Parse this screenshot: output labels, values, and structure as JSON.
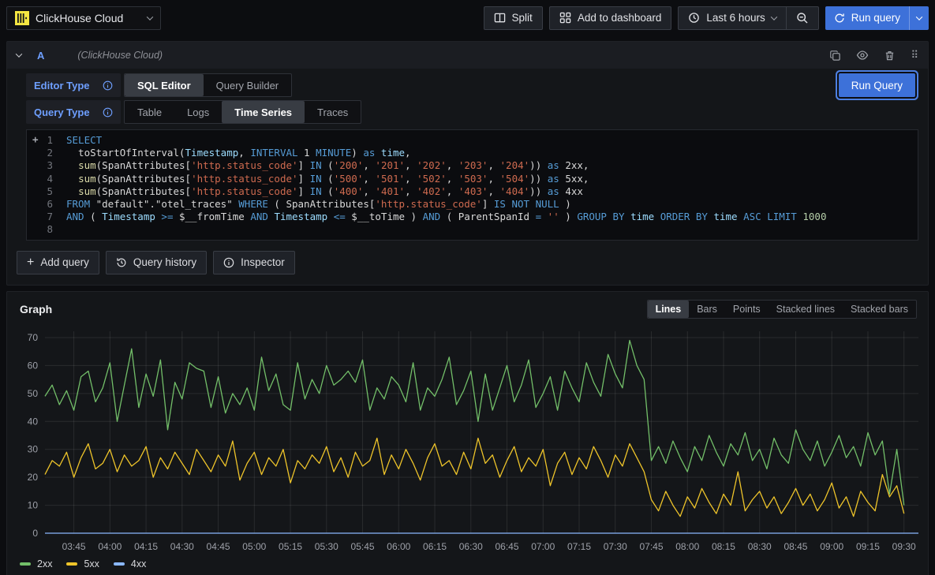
{
  "topbar": {
    "datasource_picker": {
      "name": "ClickHouse Cloud"
    },
    "split_label": "Split",
    "add_to_dashboard_label": "Add to dashboard",
    "time_range_label": "Last 6 hours",
    "run_query_label": "Run query"
  },
  "icons": {
    "datasource_logo": "clickhouse-bars",
    "split": "split-panes",
    "add_to_dashboard": "apps-grid",
    "time_range": "clock",
    "zoom_out": "magnifier-minus",
    "run_query": "refresh-arrows",
    "collapse": "chevron-down",
    "duplicate": "copy",
    "visibility": "eye",
    "delete": "trash",
    "drag": "dots-grid",
    "add": "plus",
    "history": "history-arrow",
    "inspector": "info-circle",
    "field_info": "info-circle"
  },
  "query_editor": {
    "ref_id": "A",
    "datasource_hint": "(ClickHouse Cloud)",
    "editor_type": {
      "label": "Editor Type",
      "options": [
        {
          "label": "SQL Editor",
          "active": true
        },
        {
          "label": "Query Builder",
          "active": false
        }
      ]
    },
    "query_type": {
      "label": "Query Type",
      "options": [
        {
          "label": "Table",
          "active": false
        },
        {
          "label": "Logs",
          "active": false
        },
        {
          "label": "Time Series",
          "active": true
        },
        {
          "label": "Traces",
          "active": false
        }
      ]
    },
    "run_query_label": "Run Query",
    "footer": {
      "add_query": "Add query",
      "query_history": "Query history",
      "inspector": "Inspector"
    }
  },
  "sql_editor": {
    "gutter_plus": "+",
    "syntax_colors": {
      "kw": "#569CD6",
      "fn": "#DCDCAA",
      "ty": "#9CDCFE",
      "str": "#CE6A4F",
      "num": "#B5CEA8",
      "pl": "#D8D8D8"
    },
    "lines": [
      [
        [
          "kw",
          "SELECT"
        ]
      ],
      [
        [
          "pl",
          "  toStartOfInterval("
        ],
        [
          "ty",
          "Timestamp"
        ],
        [
          "pl",
          ", "
        ],
        [
          "kw",
          "INTERVAL"
        ],
        [
          "pl",
          " 1 "
        ],
        [
          "kw",
          "MINUTE"
        ],
        [
          "pl",
          ") "
        ],
        [
          "kw",
          "as"
        ],
        [
          "pl",
          " "
        ],
        [
          "ty",
          "time"
        ],
        [
          "pl",
          ","
        ]
      ],
      [
        [
          "pl",
          "  "
        ],
        [
          "fn",
          "sum"
        ],
        [
          "pl",
          "(SpanAttributes["
        ],
        [
          "str",
          "'http.status_code'"
        ],
        [
          "pl",
          "] "
        ],
        [
          "kw",
          "IN"
        ],
        [
          "pl",
          " ("
        ],
        [
          "str",
          "'200'"
        ],
        [
          "pl",
          ", "
        ],
        [
          "str",
          "'201'"
        ],
        [
          "pl",
          ", "
        ],
        [
          "str",
          "'202'"
        ],
        [
          "pl",
          ", "
        ],
        [
          "str",
          "'203'"
        ],
        [
          "pl",
          ", "
        ],
        [
          "str",
          "'204'"
        ],
        [
          "pl",
          ")) "
        ],
        [
          "kw",
          "as"
        ],
        [
          "pl",
          " 2xx,"
        ]
      ],
      [
        [
          "pl",
          "  "
        ],
        [
          "fn",
          "sum"
        ],
        [
          "pl",
          "(SpanAttributes["
        ],
        [
          "str",
          "'http.status_code'"
        ],
        [
          "pl",
          "] "
        ],
        [
          "kw",
          "IN"
        ],
        [
          "pl",
          " ("
        ],
        [
          "str",
          "'500'"
        ],
        [
          "pl",
          ", "
        ],
        [
          "str",
          "'501'"
        ],
        [
          "pl",
          ", "
        ],
        [
          "str",
          "'502'"
        ],
        [
          "pl",
          ", "
        ],
        [
          "str",
          "'503'"
        ],
        [
          "pl",
          ", "
        ],
        [
          "str",
          "'504'"
        ],
        [
          "pl",
          ")) "
        ],
        [
          "kw",
          "as"
        ],
        [
          "pl",
          " 5xx,"
        ]
      ],
      [
        [
          "pl",
          "  "
        ],
        [
          "fn",
          "sum"
        ],
        [
          "pl",
          "(SpanAttributes["
        ],
        [
          "str",
          "'http.status_code'"
        ],
        [
          "pl",
          "] "
        ],
        [
          "kw",
          "IN"
        ],
        [
          "pl",
          " ("
        ],
        [
          "str",
          "'400'"
        ],
        [
          "pl",
          ", "
        ],
        [
          "str",
          "'401'"
        ],
        [
          "pl",
          ", "
        ],
        [
          "str",
          "'402'"
        ],
        [
          "pl",
          ", "
        ],
        [
          "str",
          "'403'"
        ],
        [
          "pl",
          ", "
        ],
        [
          "str",
          "'404'"
        ],
        [
          "pl",
          ")) "
        ],
        [
          "kw",
          "as"
        ],
        [
          "pl",
          " 4xx"
        ]
      ],
      [
        [
          "kw",
          "FROM"
        ],
        [
          "pl",
          " \"default\".\"otel_traces\" "
        ],
        [
          "kw",
          "WHERE"
        ],
        [
          "pl",
          " ( SpanAttributes["
        ],
        [
          "str",
          "'http.status_code'"
        ],
        [
          "pl",
          "] "
        ],
        [
          "kw",
          "IS NOT NULL"
        ],
        [
          "pl",
          " )"
        ]
      ],
      [
        [
          "kw",
          "AND"
        ],
        [
          "pl",
          " ( "
        ],
        [
          "ty",
          "Timestamp"
        ],
        [
          "pl",
          " "
        ],
        [
          "kw",
          ">="
        ],
        [
          "pl",
          " $__fromTime "
        ],
        [
          "kw",
          "AND"
        ],
        [
          "pl",
          " "
        ],
        [
          "ty",
          "Timestamp"
        ],
        [
          "pl",
          " "
        ],
        [
          "kw",
          "<="
        ],
        [
          "pl",
          " $__toTime ) "
        ],
        [
          "kw",
          "AND"
        ],
        [
          "pl",
          " ( ParentSpanId "
        ],
        [
          "kw",
          "="
        ],
        [
          "pl",
          " "
        ],
        [
          "str",
          "''"
        ],
        [
          "pl",
          " ) "
        ],
        [
          "kw",
          "GROUP BY"
        ],
        [
          "pl",
          " "
        ],
        [
          "ty",
          "time"
        ],
        [
          "pl",
          " "
        ],
        [
          "kw",
          "ORDER BY"
        ],
        [
          "pl",
          " "
        ],
        [
          "ty",
          "time"
        ],
        [
          "pl",
          " "
        ],
        [
          "kw",
          "ASC"
        ],
        [
          "pl",
          " "
        ],
        [
          "kw",
          "LIMIT"
        ],
        [
          "pl",
          " "
        ],
        [
          "num",
          "1000"
        ]
      ],
      []
    ]
  },
  "graph": {
    "title": "Graph",
    "modes": {
      "options": [
        {
          "label": "Lines",
          "active": true
        },
        {
          "label": "Bars",
          "active": false
        },
        {
          "label": "Points",
          "active": false
        },
        {
          "label": "Stacked lines",
          "active": false
        },
        {
          "label": "Stacked bars",
          "active": false
        }
      ]
    }
  },
  "chart_data": {
    "type": "line",
    "title": "Graph",
    "xlabel": "time",
    "ylabel": "",
    "ylim": [
      0,
      70
    ],
    "y_ticks": [
      0,
      10,
      20,
      30,
      40,
      50,
      60,
      70
    ],
    "x_time_start_min": 213,
    "x_step_min": 3,
    "x_tick_first_min": 225,
    "x_tick_step_min": 15,
    "x_tick_labels": [
      "03:45",
      "04:00",
      "04:15",
      "04:30",
      "04:45",
      "05:00",
      "05:15",
      "05:30",
      "05:45",
      "06:00",
      "06:15",
      "06:30",
      "06:45",
      "07:00",
      "07:15",
      "07:30",
      "07:45",
      "08:00",
      "08:15",
      "08:30",
      "08:45",
      "09:00",
      "09:15",
      "09:30"
    ],
    "grid": true,
    "legend_position": "bottom-left",
    "series": [
      {
        "name": "2xx",
        "color": "#73BF69",
        "values": [
          49,
          53,
          46,
          51,
          44,
          56,
          58,
          47,
          52,
          61,
          40,
          53,
          66,
          45,
          57,
          49,
          62,
          37,
          54,
          48,
          61,
          59,
          58,
          45,
          56,
          43,
          50,
          46,
          52,
          44,
          63,
          51,
          57,
          46,
          44,
          61,
          48,
          55,
          50,
          60,
          53,
          55,
          58,
          54,
          62,
          44,
          52,
          48,
          56,
          53,
          47,
          61,
          44,
          52,
          49,
          55,
          63,
          46,
          51,
          58,
          40,
          57,
          44,
          52,
          60,
          47,
          53,
          62,
          45,
          50,
          56,
          44,
          58,
          52,
          47,
          61,
          54,
          49,
          64,
          57,
          52,
          69,
          60,
          55,
          26,
          31,
          25,
          33,
          27,
          22,
          31,
          26,
          35,
          29,
          24,
          32,
          28,
          36,
          26,
          30,
          23,
          34,
          28,
          25,
          37,
          30,
          26,
          33,
          24,
          29,
          35,
          27,
          31,
          24,
          36,
          28,
          33,
          14,
          30,
          10
        ]
      },
      {
        "name": "5xx",
        "color": "#EEC42A",
        "values": [
          21,
          26,
          24,
          29,
          20,
          27,
          32,
          23,
          25,
          30,
          22,
          28,
          24,
          26,
          31,
          20,
          27,
          23,
          29,
          25,
          21,
          30,
          26,
          22,
          28,
          24,
          33,
          19,
          25,
          29,
          21,
          27,
          24,
          30,
          18,
          26,
          23,
          28,
          25,
          31,
          22,
          27,
          20,
          29,
          24,
          26,
          34,
          21,
          28,
          23,
          30,
          25,
          19,
          27,
          32,
          24,
          26,
          21,
          29,
          23,
          34,
          25,
          28,
          20,
          26,
          31,
          22,
          27,
          24,
          30,
          17,
          25,
          29,
          21,
          27,
          23,
          31,
          26,
          20,
          28,
          24,
          32,
          27,
          22,
          12,
          8,
          15,
          10,
          6,
          13,
          9,
          16,
          11,
          7,
          14,
          10,
          22,
          8,
          12,
          15,
          9,
          13,
          7,
          11,
          16,
          10,
          14,
          8,
          12,
          18,
          9,
          13,
          6,
          15,
          11,
          8,
          21,
          13,
          17,
          7
        ]
      },
      {
        "name": "4xx",
        "color": "#8AB8FF",
        "constant": 0
      }
    ]
  }
}
